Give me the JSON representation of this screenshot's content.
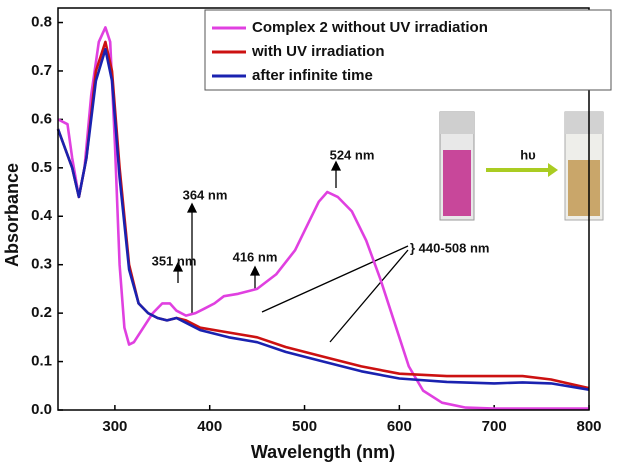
{
  "chart_data": {
    "type": "line",
    "xlabel": "Wavelength (nm)",
    "ylabel": "Absorbance",
    "xlim": [
      240,
      800
    ],
    "ylim": [
      0,
      0.83
    ],
    "xticks": [
      300,
      400,
      500,
      600,
      700,
      800
    ],
    "yticks": [
      {
        "value": 0,
        "label": "0.0"
      },
      0.1,
      0.2,
      0.3,
      0.4,
      0.5,
      0.6,
      0.7,
      0.8
    ],
    "series": [
      {
        "name": "Complex 2 without UV irradiation",
        "color": "#e040e0",
        "x": [
          240,
          250,
          255,
          262,
          268,
          275,
          283,
          290,
          295,
          300,
          305,
          310,
          315,
          320,
          330,
          340,
          350,
          358,
          365,
          375,
          385,
          395,
          405,
          415,
          430,
          450,
          470,
          490,
          505,
          515,
          524,
          535,
          550,
          565,
          580,
          595,
          610,
          625,
          645,
          670,
          700,
          800
        ],
        "values": [
          0.6,
          0.59,
          0.52,
          0.44,
          0.5,
          0.65,
          0.76,
          0.79,
          0.76,
          0.55,
          0.3,
          0.17,
          0.135,
          0.14,
          0.17,
          0.2,
          0.22,
          0.22,
          0.205,
          0.195,
          0.2,
          0.21,
          0.22,
          0.235,
          0.24,
          0.25,
          0.28,
          0.33,
          0.39,
          0.43,
          0.45,
          0.44,
          0.41,
          0.35,
          0.27,
          0.18,
          0.09,
          0.04,
          0.015,
          0.005,
          0.003,
          0.003
        ]
      },
      {
        "name": "with UV irradiation",
        "color": "#cc1111",
        "x": [
          240,
          255,
          262,
          270,
          280,
          290,
          297,
          305,
          315,
          325,
          335,
          345,
          355,
          365,
          375,
          390,
          420,
          450,
          480,
          520,
          560,
          600,
          650,
          700,
          730,
          760,
          800
        ],
        "values": [
          0.58,
          0.5,
          0.44,
          0.52,
          0.7,
          0.76,
          0.7,
          0.5,
          0.3,
          0.22,
          0.2,
          0.19,
          0.185,
          0.19,
          0.185,
          0.17,
          0.16,
          0.15,
          0.13,
          0.11,
          0.09,
          0.075,
          0.07,
          0.07,
          0.07,
          0.063,
          0.045
        ]
      },
      {
        "name": "after infinite time",
        "color": "#1a22b0",
        "x": [
          240,
          255,
          262,
          270,
          280,
          290,
          297,
          305,
          315,
          325,
          335,
          345,
          355,
          365,
          375,
          390,
          420,
          450,
          480,
          520,
          560,
          600,
          650,
          700,
          730,
          760,
          800
        ],
        "values": [
          0.58,
          0.5,
          0.44,
          0.52,
          0.68,
          0.745,
          0.68,
          0.48,
          0.29,
          0.22,
          0.2,
          0.19,
          0.185,
          0.19,
          0.18,
          0.165,
          0.15,
          0.14,
          0.12,
          0.1,
          0.08,
          0.065,
          0.058,
          0.055,
          0.057,
          0.055,
          0.042
        ]
      }
    ],
    "annotations": [
      "524 nm",
      "364 nm",
      "351 nm",
      "416 nm",
      "} 440-508 nm",
      "hυ"
    ]
  }
}
